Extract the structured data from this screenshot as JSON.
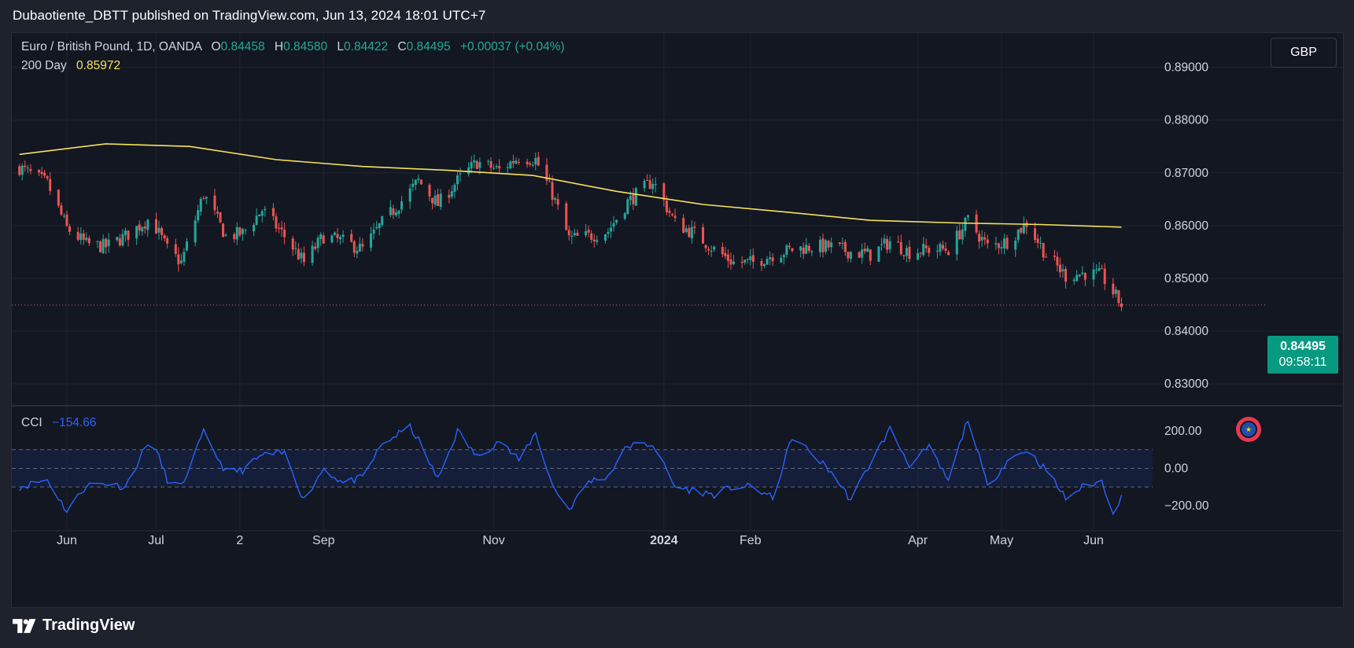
{
  "publish_line": "Dubaotiente_DBTT published on TradingView.com, Jun 13, 2024 18:01 UTC+7",
  "legend": {
    "symbol": "Euro / British Pound, 1D, OANDA",
    "o_label": "O",
    "o_value": "0.84458",
    "h_label": "H",
    "h_value": "0.84580",
    "l_label": "L",
    "l_value": "0.84422",
    "c_label": "C",
    "c_value": "0.84495",
    "change": "+0.00037 (+0.04%)",
    "ma_label": "200 Day",
    "ma_value": "0.85972"
  },
  "currency_button": "GBP",
  "price_tag": {
    "price": "0.84495",
    "countdown": "09:58:11"
  },
  "cci_legend": {
    "label": "CCI",
    "value": "−154.66"
  },
  "brand": "TradingView",
  "colors": {
    "background": "#131722",
    "up": "#26a69a",
    "down": "#ef5350",
    "ma": "#f7e25b",
    "cci": "#2962ff",
    "last_price": "#089981"
  },
  "icons": [
    "eu-flag-icon",
    "tradingview-logo-icon"
  ],
  "chart_data": [
    {
      "type": "candlestick",
      "title": "Euro / British Pound, 1D, OANDA",
      "y_ticks": [
        "0.89000",
        "0.88000",
        "0.87000",
        "0.86000",
        "0.85000",
        "0.84000",
        "0.83000"
      ],
      "ylim": [
        0.826,
        0.8965
      ],
      "x_ticks": [
        "Jun",
        "Jul",
        "2",
        "Sep",
        "Nov",
        "2024",
        "Feb",
        "Apr",
        "May",
        "Jun"
      ],
      "x_tick_dates": [
        "2023-06-01",
        "2023-07-03",
        "2023-08-02",
        "2023-09-01",
        "2023-11-01",
        "2024-01-01",
        "2024-02-01",
        "2024-04-01",
        "2024-05-01",
        "2024-06-03"
      ],
      "last_price": 0.84495,
      "close_approx": [
        [
          "2023-05-15",
          0.871
        ],
        [
          "2023-05-25",
          0.868
        ],
        [
          "2023-06-01",
          0.8595
        ],
        [
          "2023-06-08",
          0.8565
        ],
        [
          "2023-06-15",
          0.856
        ],
        [
          "2023-06-22",
          0.858
        ],
        [
          "2023-07-01",
          0.8615
        ],
        [
          "2023-07-07",
          0.8555
        ],
        [
          "2023-07-12",
          0.853
        ],
        [
          "2023-07-20",
          0.866
        ],
        [
          "2023-07-28",
          0.858
        ],
        [
          "2023-08-03",
          0.8585
        ],
        [
          "2023-08-10",
          0.863
        ],
        [
          "2023-08-18",
          0.858
        ],
        [
          "2023-08-25",
          0.853
        ],
        [
          "2023-09-01",
          0.858
        ],
        [
          "2023-09-08",
          0.857
        ],
        [
          "2023-09-15",
          0.8555
        ],
        [
          "2023-09-22",
          0.8605
        ],
        [
          "2023-10-02",
          0.8665
        ],
        [
          "2023-10-05",
          0.8685
        ],
        [
          "2023-10-12",
          0.864
        ],
        [
          "2023-10-19",
          0.8685
        ],
        [
          "2023-10-26",
          0.872
        ],
        [
          "2023-11-03",
          0.8705
        ],
        [
          "2023-11-10",
          0.873
        ],
        [
          "2023-11-16",
          0.8725
        ],
        [
          "2023-11-22",
          0.866
        ],
        [
          "2023-11-28",
          0.8575
        ],
        [
          "2023-12-05",
          0.858
        ],
        [
          "2023-12-12",
          0.859
        ],
        [
          "2023-12-19",
          0.8645
        ],
        [
          "2023-12-28",
          0.8685
        ],
        [
          "2024-01-05",
          0.8605
        ],
        [
          "2024-01-12",
          0.8585
        ],
        [
          "2024-01-19",
          0.8555
        ],
        [
          "2024-01-26",
          0.853
        ],
        [
          "2024-02-02",
          0.853
        ],
        [
          "2024-02-09",
          0.8545
        ],
        [
          "2024-02-16",
          0.8555
        ],
        [
          "2024-02-23",
          0.856
        ],
        [
          "2024-03-01",
          0.856
        ],
        [
          "2024-03-08",
          0.855
        ],
        [
          "2024-03-15",
          0.8545
        ],
        [
          "2024-03-22",
          0.857
        ],
        [
          "2024-03-29",
          0.855
        ],
        [
          "2024-04-05",
          0.8555
        ],
        [
          "2024-04-12",
          0.8555
        ],
        [
          "2024-04-19",
          0.861
        ],
        [
          "2024-04-26",
          0.856
        ],
        [
          "2024-05-03",
          0.857
        ],
        [
          "2024-05-10",
          0.8605
        ],
        [
          "2024-05-17",
          0.8545
        ],
        [
          "2024-05-24",
          0.8505
        ],
        [
          "2024-05-31",
          0.851
        ],
        [
          "2024-06-06",
          0.8505
        ],
        [
          "2024-06-13",
          0.84495
        ]
      ],
      "series": [
        {
          "name": "200 Day",
          "values": [
            [
              "2023-05-15",
              0.8735
            ],
            [
              "2023-06-15",
              0.8755
            ],
            [
              "2023-07-15",
              0.875
            ],
            [
              "2023-08-15",
              0.8725
            ],
            [
              "2023-09-15",
              0.8712
            ],
            [
              "2023-10-15",
              0.8705
            ],
            [
              "2023-11-15",
              0.8695
            ],
            [
              "2023-12-15",
              0.8665
            ],
            [
              "2024-01-15",
              0.864
            ],
            [
              "2024-02-15",
              0.8625
            ],
            [
              "2024-03-15",
              0.861
            ],
            [
              "2024-04-15",
              0.8605
            ],
            [
              "2024-05-15",
              0.8602
            ],
            [
              "2024-06-13",
              0.85972
            ]
          ]
        }
      ]
    },
    {
      "type": "line",
      "title": "CCI",
      "y_ticks": [
        "200.00",
        "0.00",
        "−200.00"
      ],
      "ylim": [
        -330,
        330
      ],
      "bands": [
        100,
        -100
      ],
      "last_value": -154.66,
      "series": [
        {
          "name": "CCI",
          "values": [
            [
              "2023-05-15",
              -100
            ],
            [
              "2023-05-25",
              -60
            ],
            [
              "2023-06-01",
              -230
            ],
            [
              "2023-06-08",
              -90
            ],
            [
              "2023-06-15",
              -80
            ],
            [
              "2023-06-22",
              -100
            ],
            [
              "2023-07-01",
              170
            ],
            [
              "2023-07-07",
              -60
            ],
            [
              "2023-07-12",
              -100
            ],
            [
              "2023-07-20",
              190
            ],
            [
              "2023-07-28",
              -20
            ],
            [
              "2023-08-03",
              -10
            ],
            [
              "2023-08-10",
              70
            ],
            [
              "2023-08-18",
              80
            ],
            [
              "2023-08-25",
              -170
            ],
            [
              "2023-09-01",
              0
            ],
            [
              "2023-09-08",
              -80
            ],
            [
              "2023-09-15",
              -50
            ],
            [
              "2023-09-22",
              130
            ],
            [
              "2023-10-02",
              220
            ],
            [
              "2023-10-05",
              150
            ],
            [
              "2023-10-12",
              -60
            ],
            [
              "2023-10-19",
              200
            ],
            [
              "2023-10-26",
              60
            ],
            [
              "2023-11-03",
              150
            ],
            [
              "2023-11-10",
              40
            ],
            [
              "2023-11-16",
              190
            ],
            [
              "2023-11-22",
              -90
            ],
            [
              "2023-11-28",
              -220
            ],
            [
              "2023-12-05",
              -70
            ],
            [
              "2023-12-12",
              -40
            ],
            [
              "2023-12-19",
              120
            ],
            [
              "2023-12-28",
              130
            ],
            [
              "2024-01-05",
              -100
            ],
            [
              "2024-01-12",
              -120
            ],
            [
              "2024-01-19",
              -140
            ],
            [
              "2024-01-26",
              -100
            ],
            [
              "2024-02-02",
              -100
            ],
            [
              "2024-02-09",
              -160
            ],
            [
              "2024-02-16",
              170
            ],
            [
              "2024-02-23",
              80
            ],
            [
              "2024-03-01",
              -20
            ],
            [
              "2024-03-08",
              -170
            ],
            [
              "2024-03-15",
              30
            ],
            [
              "2024-03-22",
              210
            ],
            [
              "2024-03-29",
              20
            ],
            [
              "2024-04-05",
              110
            ],
            [
              "2024-04-12",
              -70
            ],
            [
              "2024-04-19",
              270
            ],
            [
              "2024-04-26",
              -100
            ],
            [
              "2024-05-03",
              40
            ],
            [
              "2024-05-10",
              100
            ],
            [
              "2024-05-17",
              -10
            ],
            [
              "2024-05-24",
              -160
            ],
            [
              "2024-05-31",
              -90
            ],
            [
              "2024-06-06",
              -70
            ],
            [
              "2024-06-10",
              -230
            ],
            [
              "2024-06-13",
              -154.66
            ]
          ]
        }
      ]
    }
  ]
}
